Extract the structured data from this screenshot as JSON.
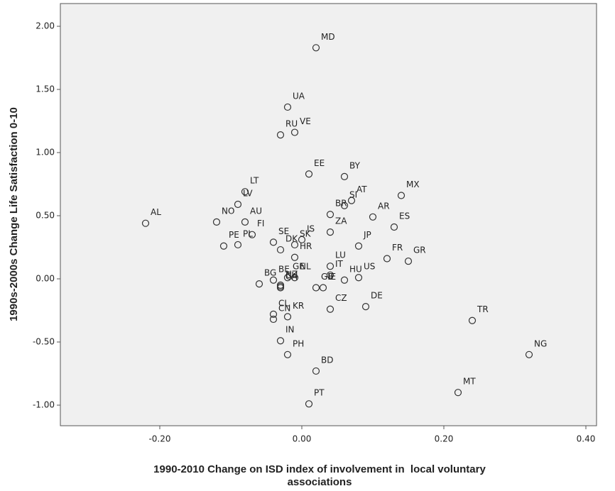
{
  "chart_data": {
    "type": "scatter",
    "x_label": [
      "1990-2010 Change on ISD index of involvement in  local voluntary",
      "associations"
    ],
    "y_label": "1990s-2000s Change Life Satisfaction 0-10",
    "xlim": [
      -0.34,
      0.415
    ],
    "ylim": [
      -1.163,
      2.18
    ],
    "xticks": [
      {
        "value": -0.2,
        "label": "-0.20"
      },
      {
        "value": 0,
        "label": "0.00"
      },
      {
        "value": 0.2,
        "label": "0.20"
      },
      {
        "value": 0.4,
        "label": "0.40"
      }
    ],
    "yticks": [
      {
        "value": -1,
        "label": "-1.00"
      },
      {
        "value": -0.5,
        "label": "-0.50"
      },
      {
        "value": 0,
        "label": "0.00"
      },
      {
        "value": 0.5,
        "label": "0.50"
      },
      {
        "value": 1,
        "label": "1.00"
      },
      {
        "value": 1.5,
        "label": "1.50"
      },
      {
        "value": 2,
        "label": "2.00"
      }
    ],
    "marker_color": "#333333",
    "labels": [
      "MD",
      "UA",
      "VE",
      "RU",
      "EE",
      "BY",
      "LT",
      "MX",
      "AT",
      "LV",
      "SI",
      "BR",
      "AR",
      "AL",
      "NO",
      "AU",
      "ES",
      "ZA",
      "FI",
      "IS",
      "SE",
      "PL",
      "PE",
      "JP",
      "SK",
      "DK",
      "HR",
      "FR",
      "GR",
      "LU",
      "GE",
      "NL",
      "IT",
      "US",
      "BG",
      "BE",
      "NZ",
      "CA",
      "HU",
      "IE",
      "GB",
      "CH",
      "CL",
      "CN",
      "KR",
      "DE",
      "CZ",
      "TR",
      "IN",
      "NG",
      "PH",
      "BD",
      "MT",
      "PT"
    ],
    "x": [
      0.02,
      -0.02,
      -0.01,
      -0.03,
      0.01,
      0.06,
      -0.08,
      0.14,
      0.07,
      -0.09,
      0.06,
      0.04,
      0.1,
      -0.22,
      -0.12,
      -0.08,
      0.13,
      0.04,
      -0.07,
      0.0,
      -0.04,
      -0.09,
      -0.11,
      0.08,
      -0.01,
      -0.03,
      -0.01,
      0.12,
      0.15,
      0.04,
      -0.02,
      -0.01,
      0.04,
      0.08,
      -0.06,
      -0.04,
      -0.03,
      -0.03,
      0.06,
      0.03,
      0.02,
      -0.03,
      -0.04,
      -0.04,
      -0.02,
      0.09,
      0.04,
      0.24,
      -0.03,
      0.32,
      -0.02,
      0.02,
      0.22,
      0.01
    ],
    "values": [
      1.83,
      1.36,
      1.16,
      1.14,
      0.83,
      0.81,
      0.69,
      0.66,
      0.62,
      0.59,
      0.58,
      0.51,
      0.49,
      0.44,
      0.45,
      0.45,
      0.41,
      0.37,
      0.35,
      0.31,
      0.29,
      0.27,
      0.26,
      0.26,
      0.27,
      0.23,
      0.17,
      0.16,
      0.14,
      0.1,
      0.01,
      0.01,
      0.03,
      0.01,
      -0.04,
      -0.01,
      -0.05,
      -0.07,
      -0.01,
      -0.07,
      -0.07,
      -0.06,
      -0.28,
      -0.32,
      -0.3,
      -0.22,
      -0.24,
      -0.33,
      -0.49,
      -0.6,
      -0.6,
      -0.73,
      -0.9,
      -0.99
    ]
  }
}
